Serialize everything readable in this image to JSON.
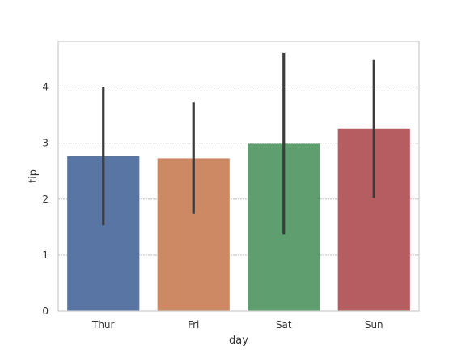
{
  "chart_data": {
    "type": "bar",
    "xlabel": "day",
    "ylabel": "tip",
    "categories": [
      "Thur",
      "Fri",
      "Sat",
      "Sun"
    ],
    "values": [
      2.77,
      2.73,
      2.99,
      3.26
    ],
    "error_low": [
      1.53,
      1.74,
      1.37,
      2.02
    ],
    "error_high": [
      4.01,
      3.73,
      4.62,
      4.49
    ],
    "ylim": [
      0,
      4.82
    ],
    "yticks": [
      0,
      1,
      2,
      3,
      4
    ],
    "grid": true,
    "colors": [
      "#5875a4",
      "#cc8963",
      "#5f9e6e",
      "#b55d60"
    ],
    "error_color": "#3c3c3c",
    "grid_color": "#b0b0b0",
    "frame_color": "#cccccc"
  }
}
